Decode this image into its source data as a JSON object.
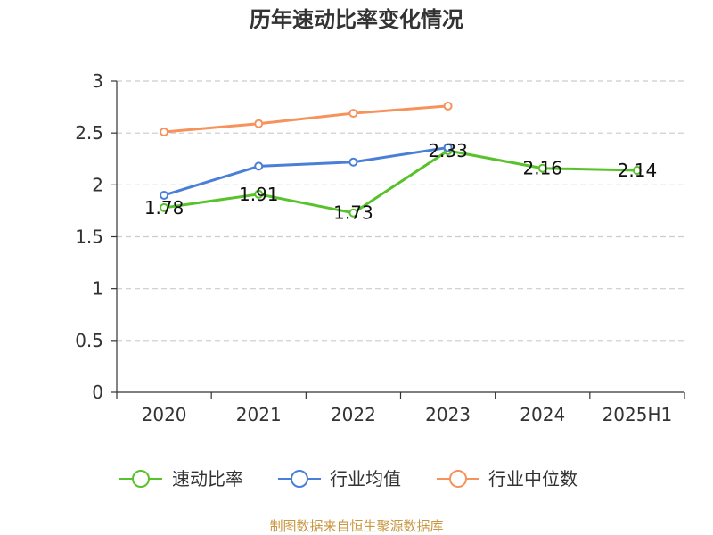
{
  "chart_data": {
    "type": "line",
    "title": "历年速动比率变化情况",
    "categories": [
      "2020",
      "2021",
      "2022",
      "2023",
      "2024",
      "2025H1"
    ],
    "ylim": [
      0,
      3
    ],
    "yticks": [
      0,
      0.5,
      1,
      1.5,
      2,
      2.5,
      3
    ],
    "grid": true,
    "legend_position": "bottom",
    "series": [
      {
        "name": "速动比率",
        "values": [
          1.78,
          1.91,
          1.73,
          2.33,
          2.16,
          2.14
        ],
        "color": "#58c22c",
        "data_labels": true
      },
      {
        "name": "行业均值",
        "values": [
          1.9,
          2.18,
          2.22,
          2.36,
          null,
          null
        ],
        "color": "#4a7fd8",
        "data_labels": false
      },
      {
        "name": "行业中位数",
        "values": [
          2.51,
          2.59,
          2.69,
          2.76,
          null,
          null
        ],
        "color": "#f6925c",
        "data_labels": false
      }
    ]
  },
  "footer": {
    "source": "制图数据来自恒生聚源数据库"
  }
}
